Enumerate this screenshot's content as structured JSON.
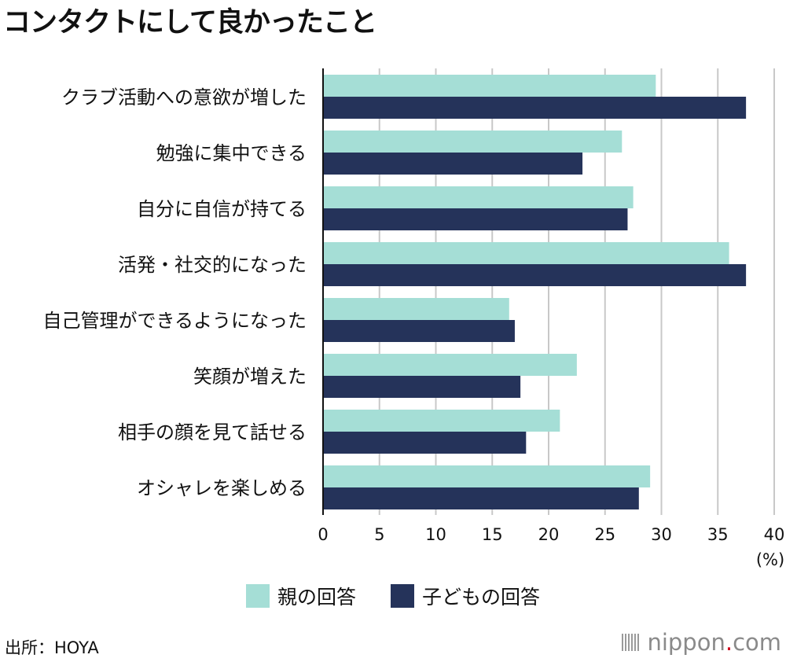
{
  "title": "コンタクトにして良かったこと",
  "source": "出所：HOYA",
  "brand": {
    "name": "nippon",
    "dot": ".",
    "tld": "com"
  },
  "chart_data": {
    "type": "bar",
    "orientation": "horizontal",
    "categories": [
      "クラブ活動への意欲が増した",
      "勉強に集中できる",
      "自分に自信が持てる",
      "活発・社交的になった",
      "自己管理ができるようになった",
      "笑顔が増えた",
      "相手の顔を見て話せる",
      "オシャレを楽しめる"
    ],
    "series": [
      {
        "name": "親の回答",
        "color": "#a5ded6",
        "values": [
          29.5,
          26.5,
          27.5,
          36,
          16.5,
          22.5,
          21,
          29
        ]
      },
      {
        "name": "子どもの回答",
        "color": "#25335a",
        "values": [
          37.5,
          23,
          27,
          37.5,
          17,
          17.5,
          18,
          28
        ]
      }
    ],
    "xlim": [
      0,
      40
    ],
    "xticks": [
      "0",
      "5",
      "10",
      "15",
      "20",
      "25",
      "30",
      "35",
      "40"
    ],
    "unit_label": "(%)",
    "grid": true,
    "legend_position": "bottom"
  }
}
